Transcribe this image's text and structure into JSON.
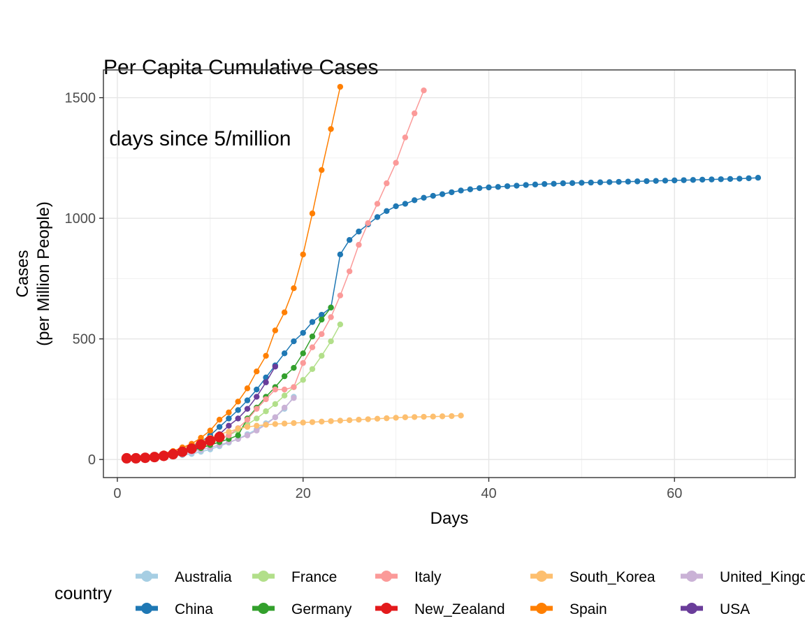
{
  "chart_data": {
    "type": "line",
    "title_line1": "Per Capita Cumulative Cases",
    "title_line2": " days since 5/million",
    "xlabel": "Days",
    "ylabel_line1": "Cases",
    "ylabel_line2": "(per Million People)",
    "xlim": [
      -1.5,
      73
    ],
    "ylim": [
      -75,
      1615
    ],
    "x_ticks": [
      0,
      20,
      40,
      60
    ],
    "y_ticks": [
      0,
      500,
      1000,
      1500
    ],
    "grid": true,
    "legend_position": "bottom",
    "legend_title": "country",
    "series": [
      {
        "name": "China",
        "color": "#1F78B4",
        "x": [
          1,
          2,
          3,
          4,
          5,
          6,
          7,
          8,
          9,
          10,
          11,
          12,
          13,
          14,
          15,
          16,
          17,
          18,
          19,
          20,
          21,
          22,
          23,
          24,
          25,
          26,
          27,
          28,
          29,
          30,
          31,
          32,
          33,
          34,
          35,
          36,
          37,
          38,
          39,
          40,
          41,
          42,
          43,
          44,
          45,
          46,
          47,
          48,
          49,
          50,
          51,
          52,
          53,
          54,
          55,
          56,
          57,
          58,
          59,
          60,
          61,
          62,
          63,
          64,
          65,
          66,
          67,
          68,
          69
        ],
        "y": [
          5,
          7,
          10,
          14,
          20,
          28,
          39,
          53,
          73,
          100,
          135,
          170,
          205,
          245,
          290,
          340,
          390,
          440,
          490,
          525,
          570,
          600,
          630,
          850,
          910,
          945,
          975,
          1005,
          1030,
          1050,
          1060,
          1075,
          1085,
          1093,
          1100,
          1108,
          1115,
          1120,
          1125,
          1128,
          1130,
          1133,
          1135,
          1138,
          1140,
          1142,
          1143,
          1145,
          1146,
          1147,
          1148,
          1149,
          1150,
          1151,
          1152,
          1153,
          1154,
          1155,
          1156,
          1157,
          1158,
          1159,
          1160,
          1161,
          1162,
          1163,
          1164,
          1166,
          1168
        ]
      },
      {
        "name": "Australia",
        "color": "#A6CEE3",
        "x": [
          1,
          2,
          3,
          4,
          5,
          6,
          7,
          8,
          9,
          10,
          11,
          12,
          13,
          14,
          15,
          16,
          17,
          18,
          19
        ],
        "y": [
          5,
          6,
          7,
          9,
          11,
          14,
          18,
          23,
          32,
          42,
          55,
          70,
          85,
          105,
          125,
          150,
          175,
          210,
          260
        ]
      },
      {
        "name": "United_Kingdom",
        "color": "#CAB2D6",
        "x": [
          1,
          2,
          3,
          4,
          5,
          6,
          7,
          8,
          9,
          10,
          11,
          12,
          13,
          14,
          15,
          16,
          17,
          18,
          19
        ],
        "y": [
          5,
          6,
          7,
          9,
          12,
          16,
          22,
          30,
          40,
          50,
          60,
          72,
          85,
          100,
          120,
          145,
          175,
          215,
          255
        ]
      },
      {
        "name": "France",
        "color": "#B2DF8A",
        "x": [
          1,
          2,
          3,
          4,
          5,
          6,
          7,
          8,
          9,
          10,
          11,
          12,
          13,
          14,
          15,
          16,
          17,
          18,
          19,
          20,
          21,
          22,
          23,
          24
        ],
        "y": [
          5,
          7,
          9,
          12,
          16,
          21,
          28,
          38,
          50,
          65,
          82,
          100,
          120,
          145,
          170,
          200,
          230,
          265,
          300,
          330,
          375,
          430,
          490,
          560
        ]
      },
      {
        "name": "Germany",
        "color": "#33A02C",
        "x": [
          1,
          2,
          3,
          4,
          5,
          6,
          7,
          8,
          9,
          10,
          11,
          12,
          13,
          14,
          15,
          16,
          17,
          18,
          19,
          20,
          21,
          22,
          23
        ],
        "y": [
          5,
          7,
          9,
          12,
          16,
          21,
          28,
          36,
          47,
          60,
          72,
          85,
          100,
          170,
          215,
          260,
          300,
          345,
          380,
          440,
          510,
          580,
          630
        ]
      },
      {
        "name": "Italy",
        "color": "#FB9A99",
        "x": [
          1,
          2,
          3,
          4,
          5,
          6,
          7,
          8,
          9,
          10,
          11,
          12,
          13,
          14,
          15,
          16,
          17,
          18,
          19,
          20,
          21,
          22,
          23,
          24,
          25,
          26,
          27,
          28,
          29,
          30,
          31,
          32,
          33
        ],
        "y": [
          5,
          7,
          9,
          12,
          16,
          22,
          30,
          40,
          52,
          68,
          85,
          100,
          130,
          165,
          210,
          250,
          290,
          290,
          300,
          400,
          465,
          520,
          590,
          680,
          780,
          890,
          980,
          1060,
          1145,
          1230,
          1335,
          1435,
          1530
        ]
      },
      {
        "name": "South_Korea",
        "color": "#FDBF6F",
        "x": [
          1,
          2,
          3,
          4,
          5,
          6,
          7,
          8,
          9,
          10,
          11,
          12,
          13,
          14,
          15,
          16,
          17,
          18,
          19,
          20,
          21,
          22,
          23,
          24,
          25,
          26,
          27,
          28,
          29,
          30,
          31,
          32,
          33,
          34,
          35,
          36,
          37
        ],
        "y": [
          5,
          8,
          12,
          18,
          25,
          35,
          45,
          60,
          75,
          90,
          105,
          115,
          128,
          135,
          140,
          144,
          147,
          149,
          151,
          153,
          155,
          157,
          159,
          161,
          163,
          165,
          167,
          169,
          171,
          173,
          175,
          176,
          177,
          178,
          179,
          180,
          182
        ]
      },
      {
        "name": "Spain",
        "color": "#FF7F00",
        "x": [
          1,
          2,
          3,
          4,
          5,
          6,
          7,
          8,
          9,
          10,
          11,
          12,
          13,
          14,
          15,
          16,
          17,
          18,
          19,
          20,
          21,
          22,
          23,
          24
        ],
        "y": [
          5,
          8,
          12,
          18,
          25,
          35,
          50,
          65,
          90,
          120,
          165,
          195,
          240,
          295,
          365,
          430,
          535,
          610,
          710,
          850,
          1020,
          1200,
          1370,
          1545
        ]
      },
      {
        "name": "USA",
        "color": "#6A3D9A",
        "x": [
          1,
          2,
          3,
          4,
          5,
          6,
          7,
          8,
          9,
          10,
          11,
          12,
          13,
          14,
          15,
          16,
          17
        ],
        "y": [
          5,
          7,
          9,
          11,
          15,
          20,
          27,
          37,
          52,
          80,
          105,
          140,
          170,
          210,
          260,
          320,
          385
        ]
      },
      {
        "name": "New_Zealand",
        "color": "#E31A1C",
        "x": [
          1,
          2,
          3,
          4,
          5,
          6,
          7,
          8,
          9,
          10,
          11
        ],
        "y": [
          5,
          5,
          7,
          10,
          15,
          22,
          32,
          45,
          62,
          78,
          93
        ]
      }
    ],
    "legend": [
      {
        "name": "Australia",
        "color": "#A6CEE3"
      },
      {
        "name": "China",
        "color": "#1F78B4"
      },
      {
        "name": "France",
        "color": "#B2DF8A"
      },
      {
        "name": "Germany",
        "color": "#33A02C"
      },
      {
        "name": "Italy",
        "color": "#FB9A99"
      },
      {
        "name": "New_Zealand",
        "color": "#E31A1C"
      },
      {
        "name": "South_Korea",
        "color": "#FDBF6F"
      },
      {
        "name": "Spain",
        "color": "#FF7F00"
      },
      {
        "name": "United_Kingdom",
        "color": "#CAB2D6"
      },
      {
        "name": "USA",
        "color": "#6A3D9A"
      }
    ]
  }
}
